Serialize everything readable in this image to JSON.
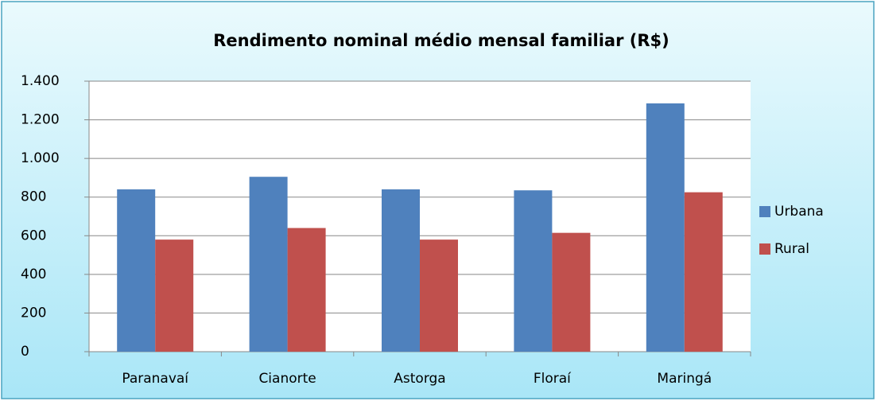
{
  "chart_data": {
    "type": "bar",
    "title": "Rendimento nominal médio mensal familiar (R$)",
    "categories": [
      "Paranavaí",
      "Cianorte",
      "Astorga",
      "Floraí",
      "Maringá"
    ],
    "series": [
      {
        "name": "Urbana",
        "color": "#4f81bd",
        "values": [
          840,
          905,
          840,
          835,
          1285
        ]
      },
      {
        "name": "Rural",
        "color": "#c0504d",
        "values": [
          580,
          640,
          580,
          615,
          825
        ]
      }
    ],
    "ylim": [
      0,
      1400
    ],
    "yticks": [
      0,
      200,
      400,
      600,
      800,
      {
        "value": 1000,
        "label": "1.000"
      },
      {
        "value": 1200,
        "label": "1.200"
      },
      {
        "value": 1400,
        "label": "1.400"
      }
    ],
    "grid": true,
    "legend": "right"
  }
}
